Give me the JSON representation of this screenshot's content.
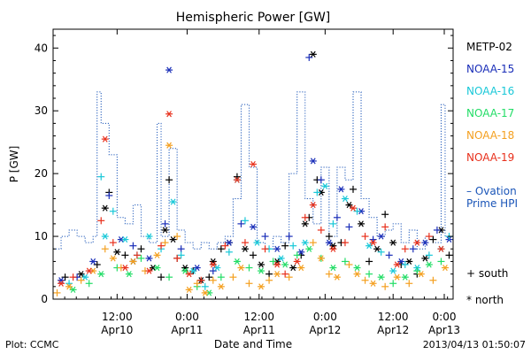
{
  "chart_data": {
    "type": "scatter",
    "title": "Hemispheric Power [GW]",
    "ylabel": "P [GW]",
    "xlabel": "Date and Time",
    "ylim": [
      0,
      43
    ],
    "xlim": [
      0,
      100
    ],
    "yticks": [
      0,
      10,
      20,
      30,
      40
    ],
    "xticks": [
      {
        "x": 16.0,
        "top": "12:00",
        "bottom": "Apr10"
      },
      {
        "x": 33.5,
        "top": "0:00",
        "bottom": "Apr11"
      },
      {
        "x": 51.5,
        "top": "12:00",
        "bottom": "Apr11"
      },
      {
        "x": 68.0,
        "top": "0:00",
        "bottom": "Apr12"
      },
      {
        "x": 85.0,
        "top": "12:00",
        "bottom": "Apr12"
      },
      {
        "x": 102.0,
        "top": "0:00",
        "bottom": "Apr13"
      }
    ],
    "grid": false,
    "legend_placement": "right",
    "series": [
      {
        "name": "METP-02",
        "color": "#000000",
        "values": [
          [
            3,
            3.5
          ],
          [
            7,
            4
          ],
          [
            11,
            5.5
          ],
          [
            13,
            14.5
          ],
          [
            14,
            17
          ],
          [
            16,
            7.5
          ],
          [
            18,
            7
          ],
          [
            20,
            6
          ],
          [
            22,
            8
          ],
          [
            25,
            5
          ],
          [
            27,
            3.5
          ],
          [
            28,
            11
          ],
          [
            29,
            19
          ],
          [
            30,
            9.5
          ],
          [
            31,
            6.5
          ],
          [
            33,
            5
          ],
          [
            35,
            4.5
          ],
          [
            37,
            3
          ],
          [
            39,
            3.5
          ],
          [
            40,
            6
          ],
          [
            42,
            8
          ],
          [
            44,
            9
          ],
          [
            46,
            19.5
          ],
          [
            48,
            8
          ],
          [
            50,
            7
          ],
          [
            52,
            5.5
          ],
          [
            54,
            4
          ],
          [
            56,
            6
          ],
          [
            58,
            8.5
          ],
          [
            60,
            5
          ],
          [
            62,
            7
          ],
          [
            63,
            12
          ],
          [
            64,
            13
          ],
          [
            65,
            39
          ],
          [
            66,
            19
          ],
          [
            67,
            17
          ],
          [
            69,
            10
          ],
          [
            70,
            8.5
          ],
          [
            72,
            9
          ],
          [
            74,
            15
          ],
          [
            75,
            17.5
          ],
          [
            77,
            12
          ],
          [
            79,
            6
          ],
          [
            81,
            8
          ],
          [
            83,
            13.5
          ],
          [
            85,
            9
          ],
          [
            87,
            5.5
          ],
          [
            89,
            6
          ],
          [
            91,
            4
          ],
          [
            93,
            6.5
          ],
          [
            95,
            9.5
          ],
          [
            97,
            11
          ],
          [
            99,
            7
          ]
        ]
      },
      {
        "name": "NOAA-15",
        "color": "#1a2eb8",
        "values": [
          [
            2,
            3
          ],
          [
            6,
            3.5
          ],
          [
            10,
            6
          ],
          [
            14,
            16.5
          ],
          [
            17,
            9.5
          ],
          [
            20,
            8.5
          ],
          [
            24,
            6.5
          ],
          [
            28,
            12
          ],
          [
            29,
            36.5
          ],
          [
            32,
            8
          ],
          [
            36,
            5
          ],
          [
            40,
            4.5
          ],
          [
            44,
            9
          ],
          [
            47,
            12
          ],
          [
            50,
            11.5
          ],
          [
            53,
            10
          ],
          [
            56,
            8
          ],
          [
            59,
            10
          ],
          [
            62,
            7.5
          ],
          [
            64,
            38.5
          ],
          [
            65,
            22
          ],
          [
            67,
            19
          ],
          [
            69,
            9
          ],
          [
            71,
            13
          ],
          [
            72,
            17.5
          ],
          [
            74,
            11.5
          ],
          [
            77,
            14
          ],
          [
            80,
            9.5
          ],
          [
            82,
            10
          ],
          [
            84,
            7
          ],
          [
            87,
            6
          ],
          [
            90,
            8
          ],
          [
            93,
            9
          ],
          [
            96,
            11
          ],
          [
            99,
            9.5
          ]
        ]
      },
      {
        "name": "NOAA-16",
        "color": "#19c8d8",
        "values": [
          [
            4,
            2.5
          ],
          [
            8,
            3.5
          ],
          [
            12,
            19.5
          ],
          [
            13,
            10
          ],
          [
            15,
            14
          ],
          [
            18,
            9.5
          ],
          [
            21,
            7
          ],
          [
            24,
            10
          ],
          [
            27,
            8
          ],
          [
            30,
            15.5
          ],
          [
            32,
            7
          ],
          [
            35,
            4.5
          ],
          [
            38,
            2
          ],
          [
            41,
            5
          ],
          [
            44,
            7.5
          ],
          [
            46,
            19
          ],
          [
            48,
            12.5
          ],
          [
            51,
            9
          ],
          [
            54,
            8
          ],
          [
            57,
            6.5
          ],
          [
            60,
            8.5
          ],
          [
            63,
            9
          ],
          [
            66,
            17
          ],
          [
            68,
            18
          ],
          [
            70,
            12
          ],
          [
            73,
            16
          ],
          [
            76,
            14
          ],
          [
            79,
            8.5
          ],
          [
            82,
            7.5
          ],
          [
            85,
            4.5
          ],
          [
            88,
            5.5
          ],
          [
            91,
            5
          ],
          [
            94,
            7
          ],
          [
            97,
            8
          ],
          [
            99,
            10
          ]
        ]
      },
      {
        "name": "NOAA-17",
        "color": "#22dd66",
        "values": [
          [
            5,
            1.5
          ],
          [
            9,
            2.5
          ],
          [
            12,
            4
          ],
          [
            16,
            5
          ],
          [
            19,
            4
          ],
          [
            22,
            6.5
          ],
          [
            26,
            5
          ],
          [
            29,
            3.5
          ],
          [
            33,
            4.5
          ],
          [
            36,
            2
          ],
          [
            39,
            1
          ],
          [
            42,
            3.5
          ],
          [
            46,
            6
          ],
          [
            49,
            5
          ],
          [
            52,
            4.5
          ],
          [
            55,
            6
          ],
          [
            58,
            5.5
          ],
          [
            61,
            7
          ],
          [
            64,
            8
          ],
          [
            67,
            6.5
          ],
          [
            70,
            5
          ],
          [
            73,
            6
          ],
          [
            76,
            5
          ],
          [
            79,
            4
          ],
          [
            82,
            3.5
          ],
          [
            85,
            2.5
          ],
          [
            88,
            3.5
          ],
          [
            91,
            4.5
          ],
          [
            94,
            5.5
          ],
          [
            97,
            6
          ]
        ]
      },
      {
        "name": "NOAA-18",
        "color": "#f4a020",
        "values": [
          [
            1,
            1
          ],
          [
            4,
            2
          ],
          [
            7,
            3
          ],
          [
            10,
            4.5
          ],
          [
            13,
            8
          ],
          [
            15,
            6.5
          ],
          [
            17,
            5
          ],
          [
            20,
            6
          ],
          [
            23,
            4.5
          ],
          [
            26,
            7
          ],
          [
            28,
            9
          ],
          [
            29,
            24.5
          ],
          [
            31,
            10
          ],
          [
            34,
            1.5
          ],
          [
            36,
            2.5
          ],
          [
            38,
            1
          ],
          [
            40,
            3
          ],
          [
            42,
            2
          ],
          [
            45,
            3.5
          ],
          [
            47,
            5
          ],
          [
            49,
            2.5
          ],
          [
            52,
            2
          ],
          [
            54,
            3
          ],
          [
            56,
            4
          ],
          [
            59,
            3.5
          ],
          [
            62,
            5
          ],
          [
            65,
            9
          ],
          [
            67,
            6.5
          ],
          [
            69,
            4
          ],
          [
            71,
            3.5
          ],
          [
            74,
            5.5
          ],
          [
            76,
            4
          ],
          [
            78,
            3
          ],
          [
            80,
            2.5
          ],
          [
            83,
            2
          ],
          [
            86,
            3.5
          ],
          [
            89,
            2.5
          ],
          [
            92,
            4
          ],
          [
            95,
            3
          ],
          [
            98,
            5
          ]
        ]
      },
      {
        "name": "NOAA-19",
        "color": "#e8301c",
        "values": [
          [
            2,
            2.5
          ],
          [
            5,
            3.5
          ],
          [
            9,
            4.5
          ],
          [
            12,
            12.5
          ],
          [
            13,
            25.5
          ],
          [
            15,
            9
          ],
          [
            18,
            5
          ],
          [
            21,
            7
          ],
          [
            24,
            4.5
          ],
          [
            27,
            8.5
          ],
          [
            29,
            29.5
          ],
          [
            31,
            6.5
          ],
          [
            34,
            4
          ],
          [
            37,
            3
          ],
          [
            40,
            5.5
          ],
          [
            43,
            8.5
          ],
          [
            46,
            19
          ],
          [
            48,
            9
          ],
          [
            50,
            21.5
          ],
          [
            53,
            8
          ],
          [
            56,
            5.5
          ],
          [
            58,
            4
          ],
          [
            61,
            6
          ],
          [
            63,
            13
          ],
          [
            65,
            15
          ],
          [
            67,
            11
          ],
          [
            70,
            8
          ],
          [
            73,
            9
          ],
          [
            75,
            14.5
          ],
          [
            78,
            10
          ],
          [
            80,
            9
          ],
          [
            83,
            11.5
          ],
          [
            86,
            5.5
          ],
          [
            88,
            8
          ],
          [
            91,
            9
          ],
          [
            94,
            10
          ],
          [
            97,
            8
          ]
        ]
      },
      {
        "name": "Ovation Prime HPI",
        "color": "#1a55b8",
        "step": [
          [
            0,
            8
          ],
          [
            2,
            10
          ],
          [
            4,
            11
          ],
          [
            6,
            10
          ],
          [
            8,
            9
          ],
          [
            10,
            10
          ],
          [
            11,
            33
          ],
          [
            12,
            28
          ],
          [
            14,
            23
          ],
          [
            16,
            13
          ],
          [
            18,
            12
          ],
          [
            20,
            15
          ],
          [
            22,
            10
          ],
          [
            24,
            9
          ],
          [
            26,
            28
          ],
          [
            27,
            10
          ],
          [
            29,
            24
          ],
          [
            31,
            11
          ],
          [
            33,
            9
          ],
          [
            35,
            8
          ],
          [
            37,
            9
          ],
          [
            39,
            8
          ],
          [
            41,
            9
          ],
          [
            43,
            10
          ],
          [
            45,
            16
          ],
          [
            47,
            31
          ],
          [
            49,
            21
          ],
          [
            51,
            9
          ],
          [
            53,
            8
          ],
          [
            55,
            10
          ],
          [
            57,
            9
          ],
          [
            59,
            20
          ],
          [
            61,
            33
          ],
          [
            63,
            16
          ],
          [
            65,
            12
          ],
          [
            67,
            21
          ],
          [
            69,
            10
          ],
          [
            71,
            21
          ],
          [
            73,
            19
          ],
          [
            75,
            33
          ],
          [
            77,
            16
          ],
          [
            79,
            13
          ],
          [
            81,
            10
          ],
          [
            83,
            11
          ],
          [
            85,
            12
          ],
          [
            87,
            9
          ],
          [
            89,
            11
          ],
          [
            91,
            8
          ],
          [
            93,
            10
          ],
          [
            95,
            9
          ],
          [
            97,
            31
          ],
          [
            98,
            10
          ],
          [
            100,
            10
          ]
        ]
      }
    ]
  },
  "legend": {
    "items": [
      {
        "label": "METP-02",
        "color": "#000000"
      },
      {
        "label": "NOAA-15",
        "color": "#1a2eb8"
      },
      {
        "label": "NOAA-16",
        "color": "#19c8d8"
      },
      {
        "label": "NOAA-17",
        "color": "#22dd66"
      },
      {
        "label": "NOAA-18",
        "color": "#f4a020"
      },
      {
        "label": "NOAA-19",
        "color": "#e8301c"
      }
    ],
    "ovation_line1": "– Ovation",
    "ovation_line2": "Prime HPI",
    "south_label": "+ south",
    "north_label": "* north"
  },
  "footer": {
    "plot_label": "Plot: CCMC",
    "timestamp": "2013/04/13 01:50:07"
  }
}
